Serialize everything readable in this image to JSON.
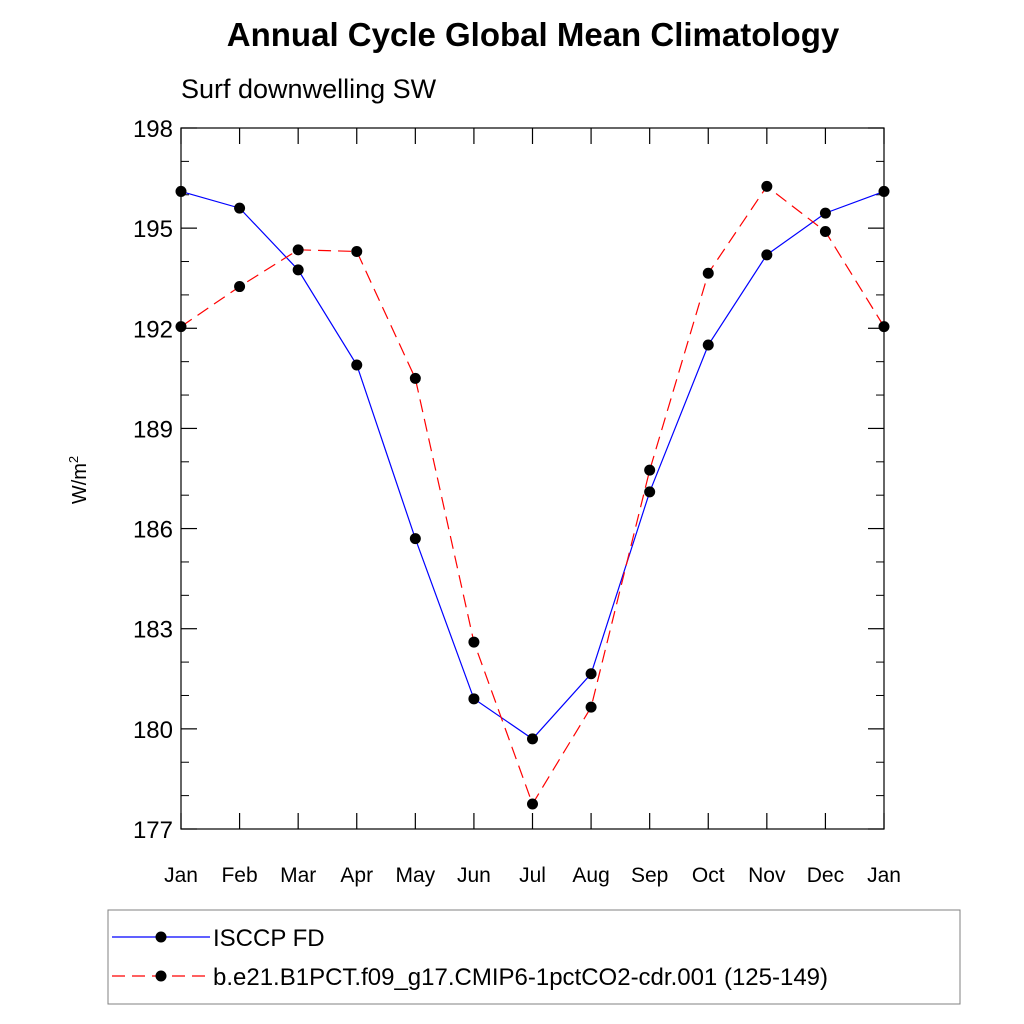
{
  "chart_data": {
    "type": "line",
    "title": "Annual Cycle Global Mean Climatology",
    "subtitle": "Surf downwelling SW",
    "ylabel": "W/m",
    "ylabel_sup": "2",
    "xlabel": "",
    "categories": [
      "Jan",
      "Feb",
      "Mar",
      "Apr",
      "May",
      "Jun",
      "Jul",
      "Aug",
      "Sep",
      "Oct",
      "Nov",
      "Dec",
      "Jan"
    ],
    "ylim": [
      177,
      198
    ],
    "yticks": [
      177,
      180,
      183,
      186,
      189,
      192,
      195,
      198
    ],
    "ytick_labels": [
      "177",
      "180",
      "183",
      "186",
      "189",
      "192",
      "195",
      "198"
    ],
    "grid": false,
    "legend_position": "bottom",
    "series": [
      {
        "name": "ISCCP FD",
        "color": "#0000ff",
        "dash": "solid",
        "marker": "filled-circle",
        "values": [
          196.1,
          195.6,
          193.75,
          190.9,
          185.7,
          180.9,
          179.7,
          181.65,
          187.1,
          191.5,
          194.2,
          195.45,
          196.1
        ]
      },
      {
        "name": "b.e21.B1PCT.f09_g17.CMIP6-1pctCO2-cdr.001 (125-149)",
        "color": "#ff0000",
        "dash": "dashed",
        "marker": "filled-circle",
        "values": [
          192.05,
          193.25,
          194.35,
          194.3,
          190.5,
          182.6,
          177.75,
          180.65,
          187.75,
          193.65,
          196.25,
          194.9,
          192.05
        ]
      }
    ]
  }
}
